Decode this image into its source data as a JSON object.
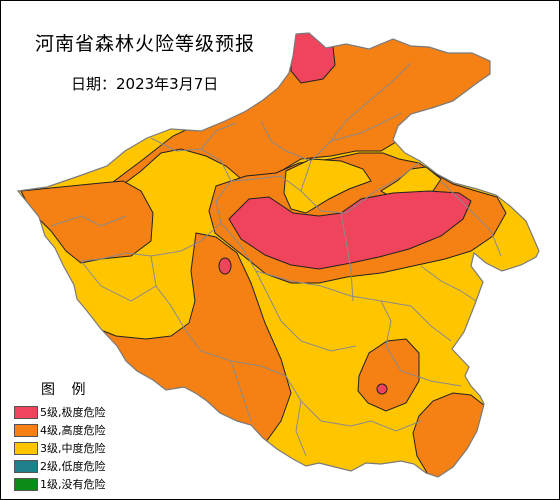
{
  "map": {
    "title": "河南省森林火险等级预报",
    "date": "日期：2023年3月7日"
  },
  "legend": {
    "title": "图 例",
    "items": [
      {
        "label": "5级,极度危险",
        "color": "#f0435c"
      },
      {
        "label": "4级,高度危险",
        "color": "#f58013"
      },
      {
        "label": "3级,中度危险",
        "color": "#ffc600"
      },
      {
        "label": "2级,低度危险",
        "color": "#1f7f8a"
      },
      {
        "label": "1级,没有危险",
        "color": "#0c8b18"
      }
    ]
  },
  "colors": {
    "level5": "#f0435c",
    "level4": "#f58013",
    "level3": "#ffc600",
    "boundary": "#8a8a8a",
    "zone_edge": "#222222"
  }
}
